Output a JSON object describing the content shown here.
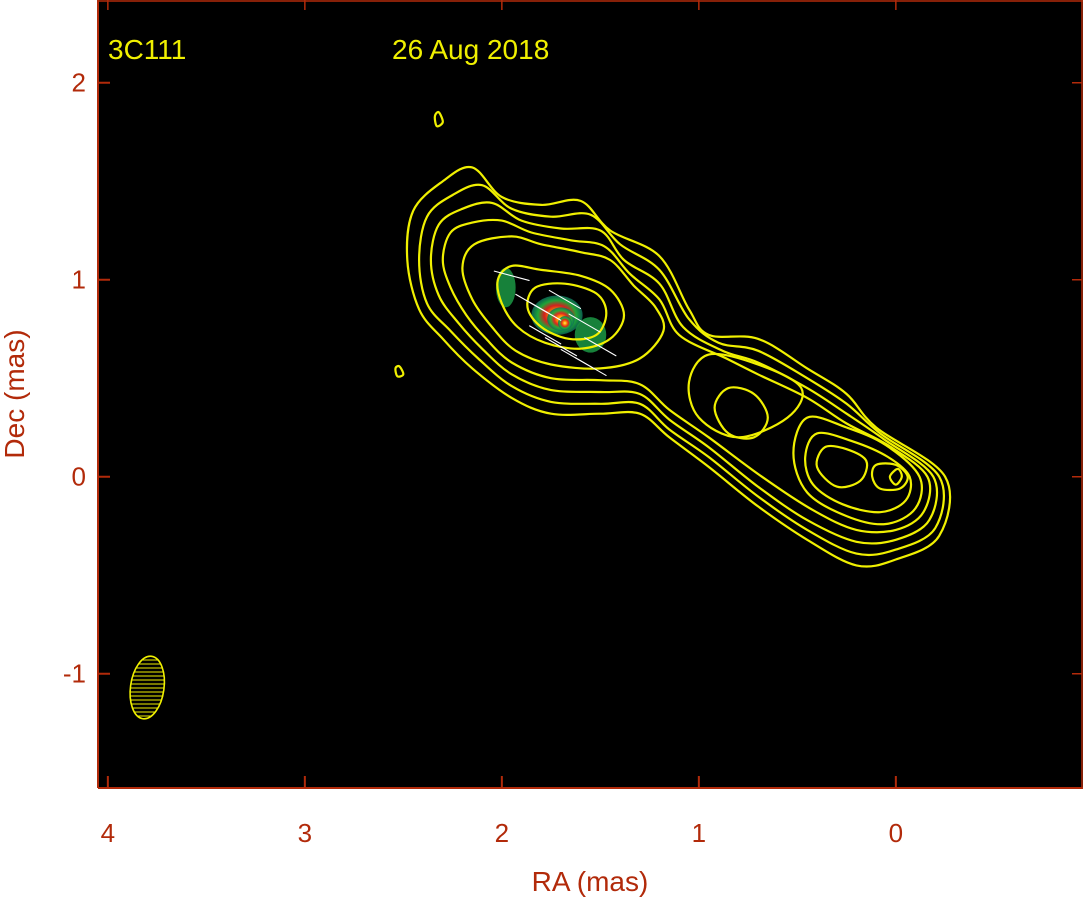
{
  "chart_data": {
    "type": "heatmap",
    "source_name": "3C111",
    "epoch": "26 Aug 2018",
    "xlabel": "RA (mas)",
    "ylabel": "Dec (mas)",
    "xlim": [
      4.05,
      -0.95
    ],
    "ylim": [
      -1.58,
      2.42
    ],
    "x_axis_reversed": true,
    "x_ticks": [
      4,
      3,
      2,
      1,
      0
    ],
    "x_tick_labels": [
      "4",
      "3",
      "2",
      "1",
      "0"
    ],
    "y_ticks": [
      -1,
      0,
      1,
      2
    ],
    "y_tick_labels": [
      "-1",
      "0",
      "1",
      "2"
    ],
    "colors": {
      "background": "#000000",
      "contour": "#f0f000",
      "axis_text": "#b22a0a",
      "frame": "#b22a0a",
      "annotation": "#f0f000",
      "vectors": "#ffffff"
    },
    "core_position": [
      0.0,
      0.0
    ],
    "beam": {
      "ra": 3.8,
      "dec": -1.07,
      "major_mas": 0.32,
      "minor_mas": 0.17,
      "pa_deg": 8
    },
    "contours": [
      [
        [
          2.15,
          1.57
        ],
        [
          2.0,
          1.42
        ],
        [
          1.8,
          1.38
        ],
        [
          1.6,
          1.4
        ],
        [
          1.45,
          1.25
        ],
        [
          1.2,
          1.12
        ],
        [
          1.05,
          0.85
        ],
        [
          0.95,
          0.72
        ],
        [
          0.7,
          0.7
        ],
        [
          0.45,
          0.55
        ],
        [
          0.25,
          0.42
        ],
        [
          0.1,
          0.25
        ],
        [
          -0.25,
          0.0
        ],
        [
          -0.22,
          -0.3
        ],
        [
          0.0,
          -0.42
        ],
        [
          0.2,
          -0.45
        ],
        [
          0.45,
          -0.32
        ],
        [
          0.7,
          -0.15
        ],
        [
          0.95,
          0.05
        ],
        [
          1.15,
          0.2
        ],
        [
          1.3,
          0.32
        ],
        [
          1.5,
          0.32
        ],
        [
          1.75,
          0.32
        ],
        [
          1.95,
          0.4
        ],
        [
          2.15,
          0.55
        ],
        [
          2.3,
          0.7
        ],
        [
          2.42,
          0.85
        ],
        [
          2.48,
          1.1
        ],
        [
          2.45,
          1.35
        ],
        [
          2.3,
          1.5
        ]
      ],
      [
        [
          2.1,
          1.48
        ],
        [
          1.95,
          1.36
        ],
        [
          1.75,
          1.32
        ],
        [
          1.55,
          1.33
        ],
        [
          1.4,
          1.18
        ],
        [
          1.2,
          1.05
        ],
        [
          1.05,
          0.8
        ],
        [
          0.9,
          0.68
        ],
        [
          0.7,
          0.64
        ],
        [
          0.45,
          0.5
        ],
        [
          0.25,
          0.37
        ],
        [
          0.08,
          0.22
        ],
        [
          -0.22,
          0.0
        ],
        [
          -0.2,
          -0.26
        ],
        [
          0.0,
          -0.37
        ],
        [
          0.2,
          -0.39
        ],
        [
          0.45,
          -0.27
        ],
        [
          0.7,
          -0.1
        ],
        [
          0.95,
          0.1
        ],
        [
          1.15,
          0.24
        ],
        [
          1.3,
          0.37
        ],
        [
          1.5,
          0.37
        ],
        [
          1.75,
          0.38
        ],
        [
          1.95,
          0.46
        ],
        [
          2.12,
          0.6
        ],
        [
          2.26,
          0.74
        ],
        [
          2.38,
          0.88
        ],
        [
          2.42,
          1.1
        ],
        [
          2.38,
          1.32
        ],
        [
          2.25,
          1.43
        ]
      ],
      [
        [
          2.05,
          1.39
        ],
        [
          1.9,
          1.3
        ],
        [
          1.7,
          1.26
        ],
        [
          1.5,
          1.25
        ],
        [
          1.38,
          1.1
        ],
        [
          1.2,
          0.98
        ],
        [
          1.08,
          0.76
        ],
        [
          0.88,
          0.64
        ],
        [
          0.7,
          0.58
        ],
        [
          0.45,
          0.45
        ],
        [
          0.25,
          0.32
        ],
        [
          0.06,
          0.19
        ],
        [
          -0.19,
          0.0
        ],
        [
          -0.17,
          -0.22
        ],
        [
          0.0,
          -0.32
        ],
        [
          0.2,
          -0.33
        ],
        [
          0.45,
          -0.22
        ],
        [
          0.7,
          -0.05
        ],
        [
          0.95,
          0.15
        ],
        [
          1.15,
          0.29
        ],
        [
          1.3,
          0.42
        ],
        [
          1.5,
          0.43
        ],
        [
          1.75,
          0.44
        ],
        [
          1.95,
          0.52
        ],
        [
          2.1,
          0.65
        ],
        [
          2.22,
          0.78
        ],
        [
          2.32,
          0.92
        ],
        [
          2.36,
          1.1
        ],
        [
          2.32,
          1.28
        ],
        [
          2.2,
          1.36
        ]
      ],
      [
        [
          2.0,
          1.3
        ],
        [
          1.85,
          1.24
        ],
        [
          1.65,
          1.2
        ],
        [
          1.48,
          1.17
        ],
        [
          1.35,
          1.03
        ],
        [
          1.2,
          0.9
        ],
        [
          1.1,
          0.72
        ],
        [
          0.86,
          0.6
        ],
        [
          0.7,
          0.52
        ],
        [
          0.45,
          0.4
        ],
        [
          0.25,
          0.27
        ],
        [
          0.04,
          0.16
        ],
        [
          -0.16,
          0.0
        ],
        [
          -0.14,
          -0.18
        ],
        [
          0.0,
          -0.27
        ],
        [
          0.2,
          -0.27
        ],
        [
          0.42,
          -0.17
        ],
        [
          0.68,
          0.0
        ],
        [
          0.95,
          0.2
        ],
        [
          1.15,
          0.34
        ],
        [
          1.3,
          0.47
        ],
        [
          1.5,
          0.49
        ],
        [
          1.75,
          0.5
        ],
        [
          1.95,
          0.58
        ],
        [
          2.08,
          0.7
        ],
        [
          2.18,
          0.82
        ],
        [
          2.26,
          0.96
        ],
        [
          2.3,
          1.1
        ],
        [
          2.26,
          1.24
        ],
        [
          2.15,
          1.29
        ]
      ],
      [
        [
          1.95,
          1.22
        ],
        [
          1.8,
          1.18
        ],
        [
          1.6,
          1.14
        ],
        [
          1.45,
          1.1
        ],
        [
          1.33,
          0.97
        ],
        [
          1.22,
          0.86
        ],
        [
          1.18,
          0.74
        ],
        [
          1.3,
          0.6
        ],
        [
          1.5,
          0.55
        ],
        [
          1.75,
          0.57
        ],
        [
          1.93,
          0.64
        ],
        [
          2.05,
          0.76
        ],
        [
          2.15,
          0.9
        ],
        [
          2.2,
          1.06
        ],
        [
          2.14,
          1.18
        ]
      ],
      [
        [
          1.95,
          1.07
        ],
        [
          1.8,
          1.05
        ],
        [
          1.6,
          1.02
        ],
        [
          1.45,
          0.95
        ],
        [
          1.38,
          0.82
        ],
        [
          1.45,
          0.7
        ],
        [
          1.6,
          0.65
        ],
        [
          1.78,
          0.68
        ],
        [
          1.92,
          0.76
        ],
        [
          2.0,
          0.88
        ],
        [
          2.02,
          1.0
        ]
      ],
      [
        [
          1.83,
          0.96
        ],
        [
          1.68,
          0.98
        ],
        [
          1.52,
          0.93
        ],
        [
          1.47,
          0.83
        ],
        [
          1.52,
          0.72
        ],
        [
          1.66,
          0.7
        ],
        [
          1.8,
          0.76
        ],
        [
          1.87,
          0.86
        ]
      ],
      [
        [
          0.95,
          0.62
        ],
        [
          0.7,
          0.57
        ],
        [
          0.48,
          0.45
        ],
        [
          0.55,
          0.3
        ],
        [
          0.8,
          0.2
        ],
        [
          1.0,
          0.3
        ],
        [
          1.05,
          0.48
        ]
      ],
      [
        [
          0.85,
          0.45
        ],
        [
          0.72,
          0.42
        ],
        [
          0.65,
          0.3
        ],
        [
          0.72,
          0.2
        ],
        [
          0.85,
          0.22
        ],
        [
          0.92,
          0.35
        ]
      ],
      [
        [
          0.45,
          0.3
        ],
        [
          0.25,
          0.25
        ],
        [
          0.05,
          0.16
        ],
        [
          -0.12,
          0.0
        ],
        [
          -0.1,
          -0.16
        ],
        [
          0.05,
          -0.24
        ],
        [
          0.25,
          -0.2
        ],
        [
          0.45,
          -0.08
        ],
        [
          0.52,
          0.12
        ]
      ],
      [
        [
          0.4,
          0.22
        ],
        [
          0.22,
          0.18
        ],
        [
          0.04,
          0.1
        ],
        [
          -0.07,
          0.0
        ],
        [
          -0.05,
          -0.12
        ],
        [
          0.08,
          -0.18
        ],
        [
          0.27,
          -0.14
        ],
        [
          0.42,
          -0.04
        ],
        [
          0.46,
          0.1
        ]
      ],
      [
        [
          0.36,
          0.15
        ],
        [
          0.25,
          0.14
        ],
        [
          0.15,
          0.08
        ],
        [
          0.18,
          -0.02
        ],
        [
          0.3,
          -0.05
        ],
        [
          0.4,
          0.05
        ]
      ],
      [
        [
          0.1,
          0.06
        ],
        [
          0.0,
          0.06
        ],
        [
          -0.06,
          0.0
        ],
        [
          -0.02,
          -0.06
        ],
        [
          0.08,
          -0.06
        ],
        [
          0.12,
          0.0
        ]
      ],
      [
        [
          -0.01,
          0.04
        ],
        [
          -0.03,
          0.0
        ],
        [
          0.0,
          -0.04
        ],
        [
          0.03,
          0.0
        ]
      ],
      [
        [
          2.32,
          1.85
        ],
        [
          2.3,
          1.8
        ],
        [
          2.33,
          1.78
        ],
        [
          2.34,
          1.83
        ]
      ],
      [
        [
          2.52,
          0.56
        ],
        [
          2.5,
          0.52
        ],
        [
          2.53,
          0.51
        ],
        [
          2.54,
          0.55
        ]
      ]
    ],
    "polarized_intensity": [
      {
        "ra": 1.98,
        "dec": 0.96,
        "rx": 0.05,
        "ry": 0.1,
        "level": 0.3
      },
      {
        "ra": 1.72,
        "dec": 0.82,
        "rx": 0.13,
        "ry": 0.1,
        "level": 0.55
      },
      {
        "ra": 1.55,
        "dec": 0.72,
        "rx": 0.08,
        "ry": 0.09,
        "level": 0.45
      },
      {
        "ra": 1.7,
        "dec": 0.8,
        "rx": 0.07,
        "ry": 0.06,
        "level": 0.85
      },
      {
        "ra": 1.68,
        "dec": 0.78,
        "rx": 0.035,
        "ry": 0.035,
        "level": 1.0
      }
    ],
    "evpa_vectors": [
      {
        "ra": 1.85,
        "dec": 0.88,
        "angle_deg": 150
      },
      {
        "ra": 1.78,
        "dec": 0.72,
        "angle_deg": 150
      },
      {
        "ra": 1.7,
        "dec": 0.66,
        "angle_deg": 150
      },
      {
        "ra": 1.62,
        "dec": 0.6,
        "angle_deg": 150
      },
      {
        "ra": 1.55,
        "dec": 0.56,
        "angle_deg": 150
      },
      {
        "ra": 1.68,
        "dec": 0.9,
        "angle_deg": 150
      },
      {
        "ra": 1.58,
        "dec": 0.78,
        "angle_deg": 150
      },
      {
        "ra": 1.95,
        "dec": 1.02,
        "angle_deg": 165
      },
      {
        "ra": 1.78,
        "dec": 0.84,
        "angle_deg": 150
      },
      {
        "ra": 1.5,
        "dec": 0.66,
        "angle_deg": 150
      }
    ]
  }
}
